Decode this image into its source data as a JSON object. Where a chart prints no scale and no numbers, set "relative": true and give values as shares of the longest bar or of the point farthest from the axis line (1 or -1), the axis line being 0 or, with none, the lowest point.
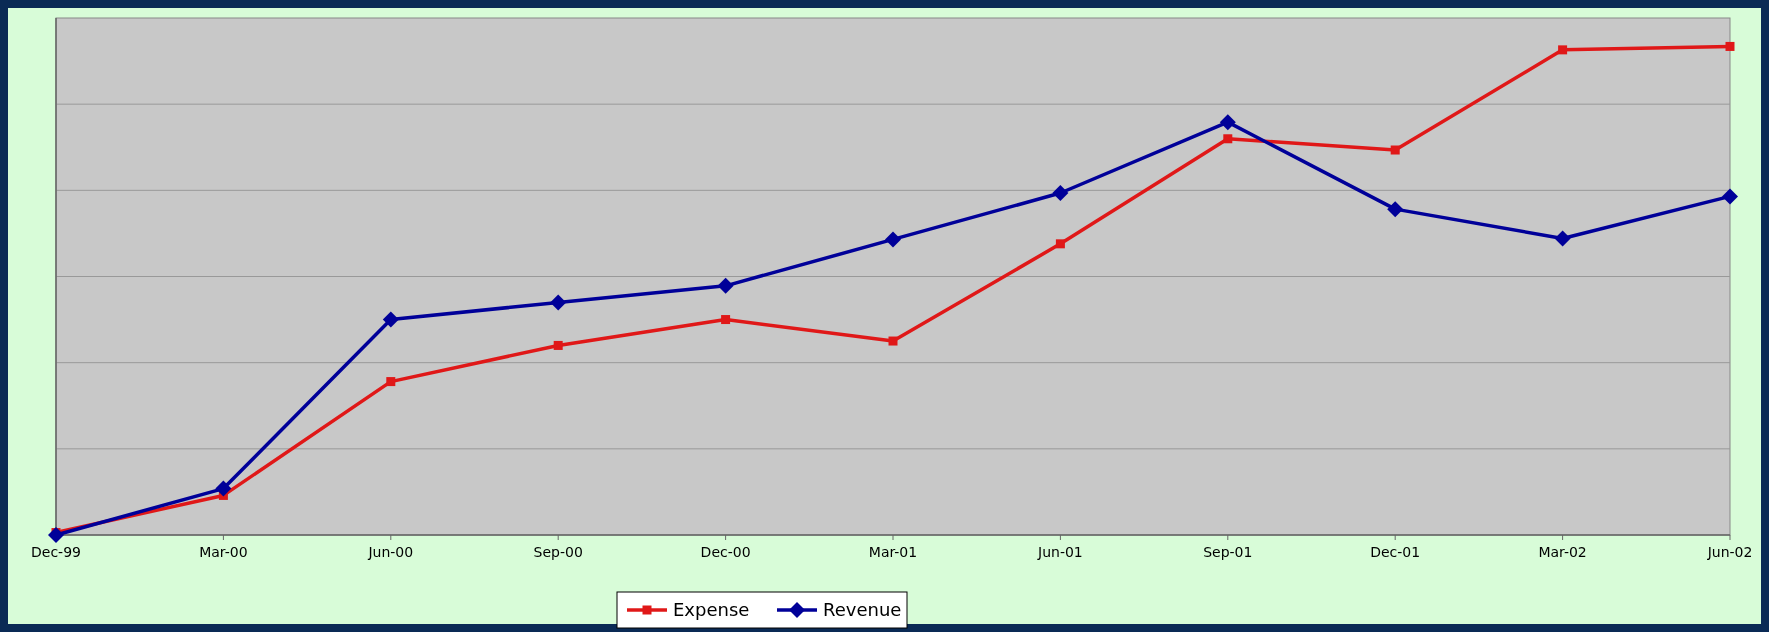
{
  "chart_data": {
    "type": "line",
    "relative": true,
    "categories": [
      "Dec-99",
      "Mar-00",
      "Jun-00",
      "Sep-00",
      "Dec-00",
      "Mar-01",
      "Jun-01",
      "Sep-01",
      "Dec-01",
      "Mar-02",
      "Jun-02"
    ],
    "series": [
      {
        "name": "Expense",
        "color": "#e01818",
        "marker": "square",
        "values": [
          0.005,
          0.081,
          0.314,
          0.388,
          0.441,
          0.397,
          0.596,
          0.811,
          0.788,
          0.993,
          1
        ]
      },
      {
        "name": "Revenue",
        "color": "#000099",
        "marker": "diamond",
        "values": [
          0,
          0.095,
          0.441,
          0.476,
          0.51,
          0.605,
          0.7,
          0.845,
          0.667,
          0.607,
          0.693
        ]
      }
    ],
    "grid": true,
    "legend": "bottom",
    "line_style": "solid"
  }
}
